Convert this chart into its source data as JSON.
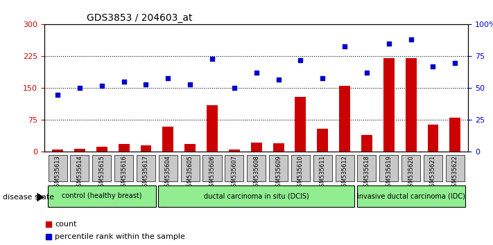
{
  "title": "GDS3853 / 204603_at",
  "samples": [
    "GSM535613",
    "GSM535614",
    "GSM535615",
    "GSM535616",
    "GSM535617",
    "GSM535604",
    "GSM535605",
    "GSM535606",
    "GSM535607",
    "GSM535608",
    "GSM535609",
    "GSM535610",
    "GSM535611",
    "GSM535612",
    "GSM535618",
    "GSM535619",
    "GSM535620",
    "GSM535621",
    "GSM535622"
  ],
  "counts": [
    5,
    8,
    12,
    18,
    15,
    60,
    18,
    110,
    5,
    22,
    20,
    130,
    55,
    155,
    40,
    220,
    220,
    65,
    80
  ],
  "percentiles": [
    45,
    50,
    52,
    55,
    53,
    58,
    53,
    73,
    50,
    62,
    57,
    72,
    58,
    83,
    62,
    85,
    88,
    67,
    70
  ],
  "bar_color": "#cc0000",
  "dot_color": "#0000cc",
  "ylim_left": [
    0,
    300
  ],
  "ylim_right": [
    0,
    100
  ],
  "yticks_left": [
    0,
    75,
    150,
    225,
    300
  ],
  "yticks_right": [
    0,
    25,
    50,
    75,
    100
  ],
  "groups": [
    {
      "label": "control (healthy breast)",
      "start": 0,
      "end": 5,
      "color": "#90ee90"
    },
    {
      "label": "ductal carcinoma in situ (DCIS)",
      "start": 5,
      "end": 14,
      "color": "#90ee90"
    },
    {
      "label": "invasive ductal carcinoma (IDC)",
      "start": 14,
      "end": 19,
      "color": "#90ee90"
    }
  ],
  "group_colors": [
    "#90ee90",
    "#90ee90",
    "#90ee90"
  ],
  "legend_count_label": "count",
  "legend_pct_label": "percentile rank within the sample",
  "disease_state_label": "disease state",
  "bg_color": "#ffffff",
  "plot_bg": "#ffffff",
  "tick_label_bg": "#c8c8c8"
}
